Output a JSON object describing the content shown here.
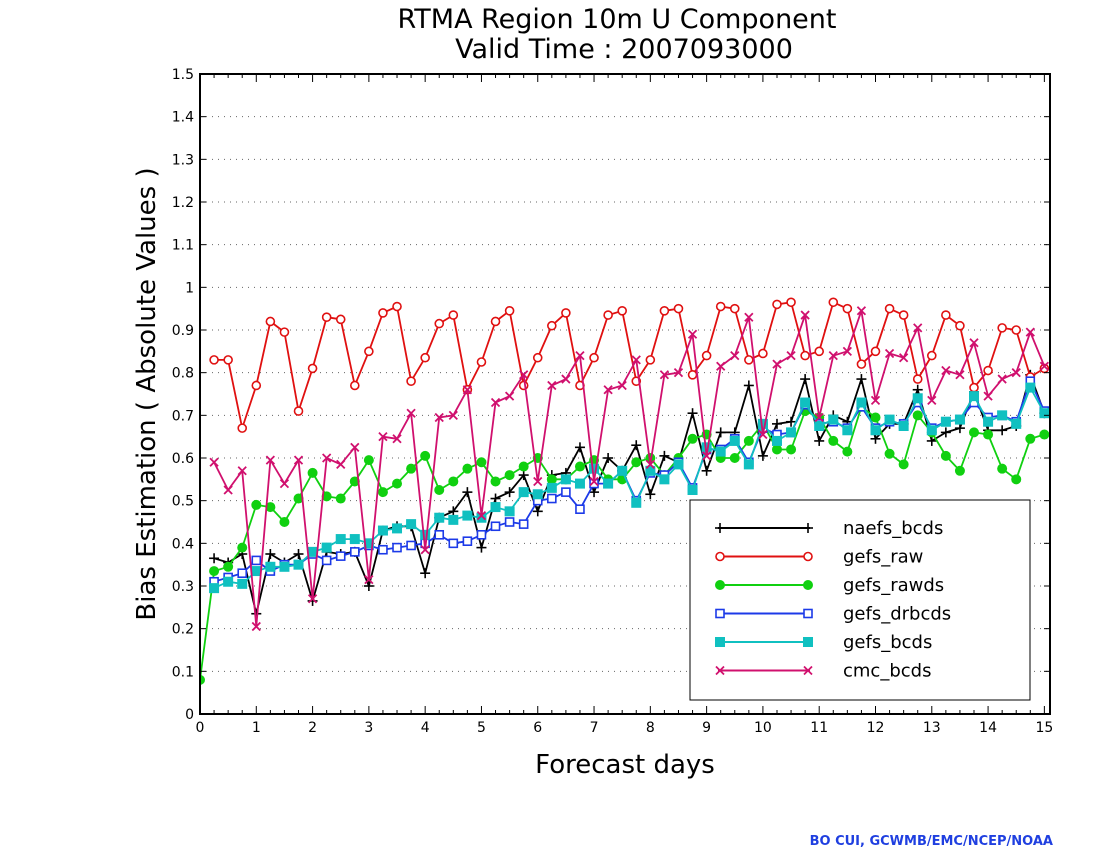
{
  "chart_data": {
    "type": "line",
    "title": "RTMA Region 10m U Component",
    "subtitle": "Valid Time : 2007093000",
    "xlabel": "Forecast days",
    "ylabel": "Bias Estimation ( Absolute Values )",
    "xlim": [
      0,
      15.1
    ],
    "ylim": [
      0,
      1.5
    ],
    "xticks": [
      "0",
      "1",
      "2",
      "3",
      "4",
      "5",
      "6",
      "7",
      "8",
      "9",
      "10",
      "11",
      "12",
      "13",
      "14",
      "15"
    ],
    "yticks": [
      "0",
      "0.1",
      "0.2",
      "0.3",
      "0.4",
      "0.5",
      "0.6",
      "0.7",
      "0.8",
      "0.9",
      "1",
      "1.1",
      "1.2",
      "1.3",
      "1.4",
      "1.5"
    ],
    "grid": "horizontal-dotted",
    "legend_position": "bottom-right",
    "x_step_days": 0.25,
    "series": [
      {
        "name": "naefs_bcds",
        "color": "#000000",
        "marker": "plus",
        "start": 0.25,
        "values": [
          0.365,
          0.355,
          0.375,
          0.235,
          0.375,
          0.355,
          0.375,
          0.265,
          0.38,
          0.375,
          0.38,
          0.3,
          0.43,
          0.44,
          0.44,
          0.33,
          0.46,
          0.475,
          0.52,
          0.39,
          0.505,
          0.52,
          0.56,
          0.475,
          0.56,
          0.565,
          0.625,
          0.52,
          0.6,
          0.57,
          0.63,
          0.515,
          0.605,
          0.59,
          0.705,
          0.57,
          0.66,
          0.66,
          0.77,
          0.605,
          0.68,
          0.685,
          0.785,
          0.64,
          0.7,
          0.685,
          0.785,
          0.645,
          0.68,
          0.68,
          0.76,
          0.64,
          0.66,
          0.67,
          0.755,
          0.665,
          0.665,
          0.675,
          0.795,
          0.705
        ]
      },
      {
        "name": "gefs_raw",
        "color": "#e01010",
        "marker": "circle",
        "start": 0.25,
        "values": [
          0.83,
          0.83,
          0.67,
          0.77,
          0.92,
          0.895,
          0.71,
          0.81,
          0.93,
          0.925,
          0.77,
          0.85,
          0.94,
          0.955,
          0.78,
          0.835,
          0.915,
          0.935,
          0.76,
          0.825,
          0.92,
          0.945,
          0.77,
          0.835,
          0.91,
          0.94,
          0.77,
          0.835,
          0.935,
          0.945,
          0.78,
          0.83,
          0.945,
          0.95,
          0.795,
          0.84,
          0.955,
          0.95,
          0.83,
          0.845,
          0.96,
          0.965,
          0.84,
          0.85,
          0.965,
          0.95,
          0.82,
          0.85,
          0.95,
          0.935,
          0.785,
          0.84,
          0.935,
          0.91,
          0.765,
          0.805,
          0.905,
          0.9,
          0.79,
          0.81
        ]
      },
      {
        "name": "gefs_rawds",
        "color": "#10d010",
        "marker": "dot",
        "start": 0,
        "values": [
          0.08,
          0.335,
          0.345,
          0.39,
          0.49,
          0.485,
          0.45,
          0.505,
          0.565,
          0.51,
          0.505,
          0.545,
          0.595,
          0.52,
          0.54,
          0.575,
          0.605,
          0.525,
          0.545,
          0.575,
          0.59,
          0.545,
          0.56,
          0.58,
          0.6,
          0.55,
          0.55,
          0.58,
          0.595,
          0.55,
          0.55,
          0.59,
          0.6,
          0.56,
          0.6,
          0.645,
          0.655,
          0.6,
          0.6,
          0.64,
          0.68,
          0.62,
          0.62,
          0.71,
          0.695,
          0.64,
          0.615,
          0.72,
          0.695,
          0.61,
          0.585,
          0.7,
          0.66,
          0.605,
          0.57,
          0.66,
          0.655,
          0.575,
          0.55,
          0.645,
          0.655
        ]
      },
      {
        "name": "gefs_drbcds",
        "color": "#1c3ae8",
        "marker": "open-square",
        "start": 0.25,
        "values": [
          0.31,
          0.32,
          0.33,
          0.36,
          0.335,
          0.35,
          0.35,
          0.375,
          0.36,
          0.37,
          0.38,
          0.395,
          0.385,
          0.39,
          0.395,
          0.4,
          0.42,
          0.4,
          0.405,
          0.42,
          0.44,
          0.45,
          0.445,
          0.5,
          0.505,
          0.52,
          0.48,
          0.54,
          0.54,
          0.57,
          0.5,
          0.565,
          0.56,
          0.59,
          0.53,
          0.62,
          0.62,
          0.645,
          0.59,
          0.67,
          0.655,
          0.66,
          0.725,
          0.68,
          0.685,
          0.67,
          0.72,
          0.67,
          0.685,
          0.68,
          0.73,
          0.67,
          0.685,
          0.69,
          0.73,
          0.695,
          0.7,
          0.685,
          0.78,
          0.71
        ]
      },
      {
        "name": "gefs_bcds",
        "color": "#10c0c0",
        "marker": "square",
        "start": 0.25,
        "values": [
          0.295,
          0.31,
          0.305,
          0.335,
          0.345,
          0.345,
          0.35,
          0.38,
          0.39,
          0.41,
          0.41,
          0.4,
          0.43,
          0.435,
          0.445,
          0.42,
          0.46,
          0.455,
          0.465,
          0.46,
          0.485,
          0.475,
          0.52,
          0.515,
          0.53,
          0.55,
          0.54,
          0.575,
          0.54,
          0.57,
          0.495,
          0.57,
          0.55,
          0.585,
          0.525,
          0.625,
          0.615,
          0.64,
          0.585,
          0.68,
          0.64,
          0.66,
          0.73,
          0.675,
          0.69,
          0.665,
          0.73,
          0.665,
          0.69,
          0.675,
          0.74,
          0.665,
          0.685,
          0.69,
          0.745,
          0.685,
          0.7,
          0.68,
          0.765,
          0.705
        ]
      },
      {
        "name": "cmc_bcds",
        "color": "#d0106e",
        "marker": "cross",
        "start": 0.25,
        "values": [
          0.59,
          0.525,
          0.57,
          0.205,
          0.595,
          0.54,
          0.595,
          0.27,
          0.6,
          0.585,
          0.625,
          0.315,
          0.65,
          0.645,
          0.705,
          0.385,
          0.695,
          0.7,
          0.76,
          0.465,
          0.73,
          0.745,
          0.795,
          0.545,
          0.77,
          0.785,
          0.84,
          0.545,
          0.76,
          0.77,
          0.83,
          0.585,
          0.795,
          0.8,
          0.89,
          0.605,
          0.815,
          0.84,
          0.93,
          0.655,
          0.82,
          0.84,
          0.935,
          0.695,
          0.84,
          0.85,
          0.945,
          0.735,
          0.845,
          0.835,
          0.905,
          0.735,
          0.805,
          0.795,
          0.87,
          0.745,
          0.785,
          0.8,
          0.895,
          0.815
        ]
      }
    ]
  },
  "credit": "BO CUI, GCWMB/EMC/NCEP/NOAA"
}
